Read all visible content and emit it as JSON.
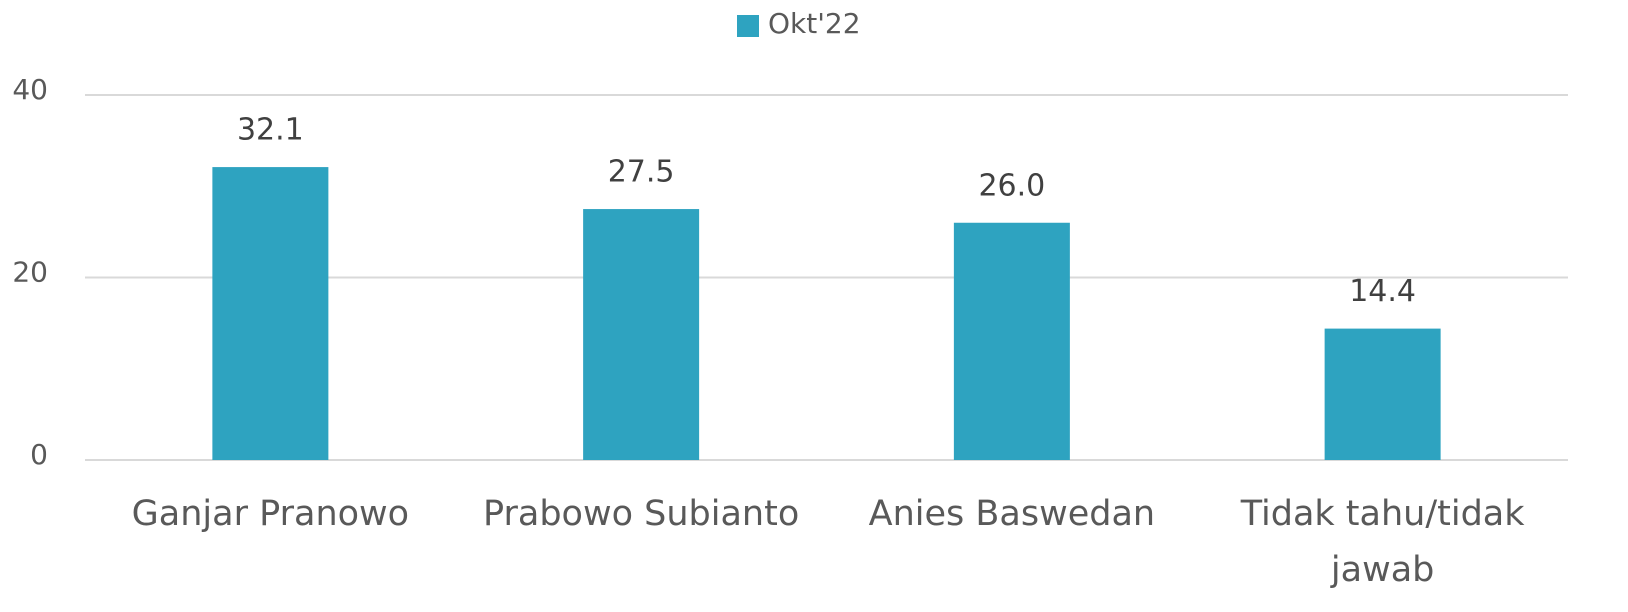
{
  "chart_data": {
    "type": "bar",
    "categories": [
      "Ganjar Pranowo",
      "Prabowo Subianto",
      "Anies Baswedan",
      "Tidak tahu/tidak jawab"
    ],
    "series": [
      {
        "name": "Okt'22",
        "color": "#2ea3c0",
        "values": [
          32.1,
          27.5,
          26.0,
          14.4
        ],
        "value_labels": [
          "32.1",
          "27.5",
          "26.0",
          "14.4"
        ]
      }
    ],
    "ylim": [
      0,
      40
    ],
    "yticks": [
      0,
      20,
      40
    ],
    "grid": true,
    "legend": "top"
  }
}
